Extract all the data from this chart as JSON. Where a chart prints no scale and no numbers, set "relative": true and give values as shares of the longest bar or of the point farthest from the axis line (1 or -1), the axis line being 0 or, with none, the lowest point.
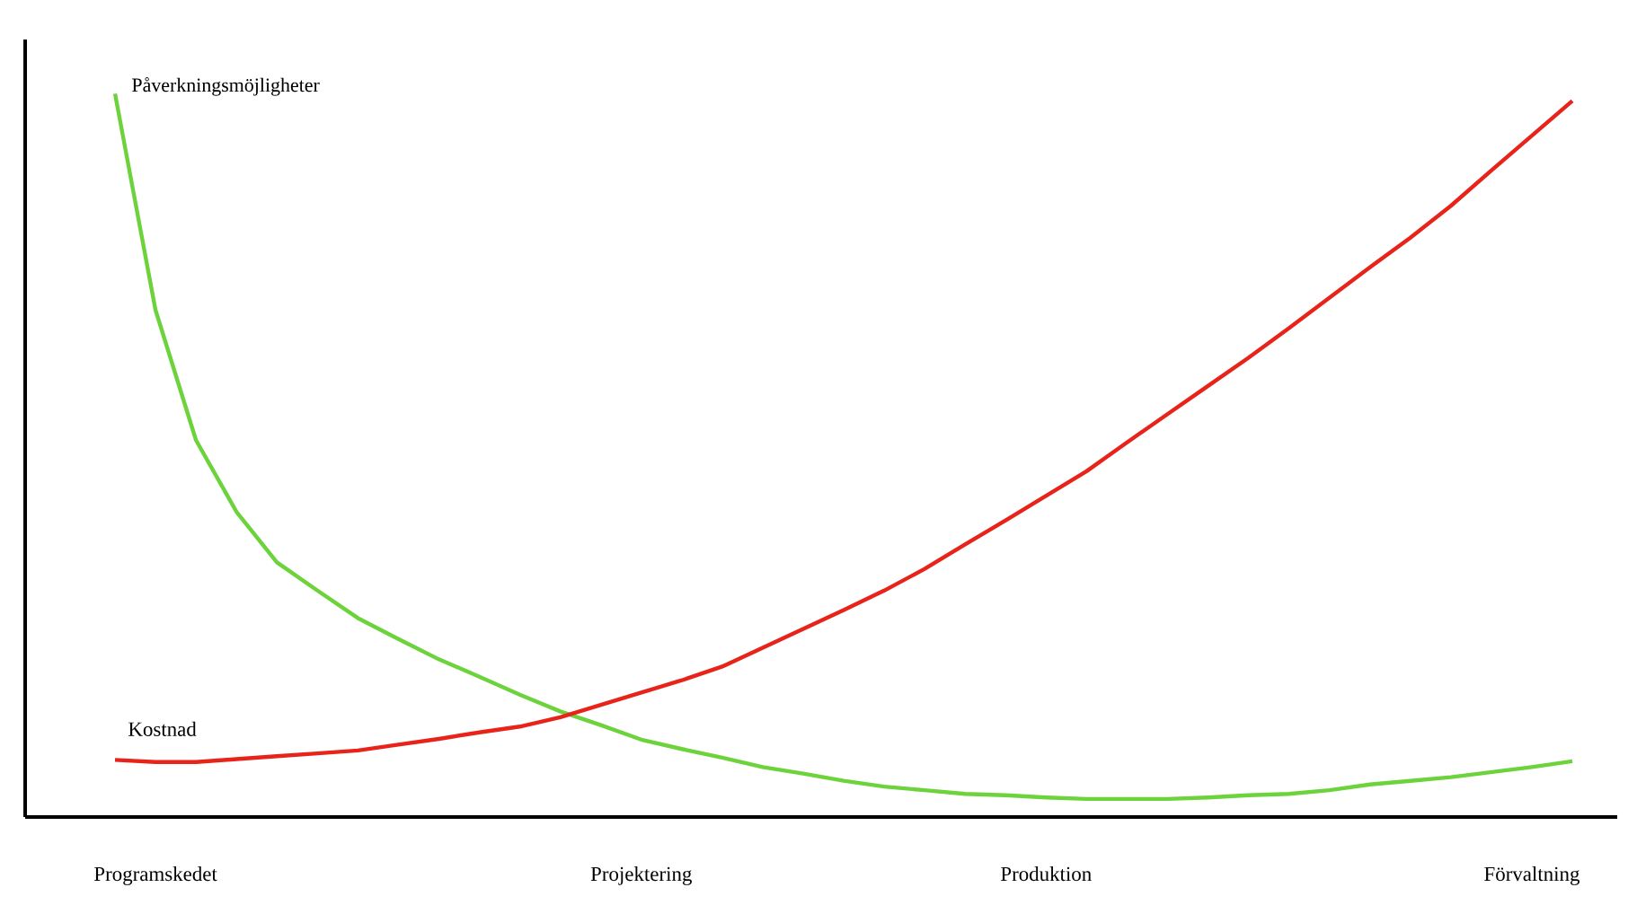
{
  "chart_data": {
    "type": "line",
    "relative": true,
    "legend": false,
    "grid": false,
    "marker": "none",
    "line_style": "solid",
    "categories": [
      null,
      "Programskedet",
      null,
      null,
      null,
      null,
      null,
      null,
      null,
      null,
      null,
      null,
      null,
      "Projektering",
      null,
      null,
      null,
      null,
      null,
      null,
      null,
      null,
      null,
      "Produktion",
      null,
      null,
      null,
      null,
      null,
      null,
      null,
      null,
      null,
      null,
      null,
      "Förvaltning",
      null
    ],
    "series": [
      {
        "name": "Påverkningsmöjligheter",
        "color": "#6dd33c",
        "values": [
          1.0,
          0.701,
          0.521,
          0.422,
          0.352,
          0.313,
          0.275,
          0.246,
          0.218,
          0.194,
          0.169,
          0.146,
          0.127,
          0.107,
          0.094,
          0.082,
          0.069,
          0.06,
          0.05,
          0.042,
          0.037,
          0.032,
          0.03,
          0.027,
          0.025,
          0.025,
          0.025,
          0.027,
          0.03,
          0.032,
          0.037,
          0.045,
          0.05,
          0.055,
          0.062,
          0.069,
          0.077
        ]
      },
      {
        "name": "Kostnad",
        "color": "#e8231a",
        "values": [
          0.079,
          0.076,
          0.076,
          0.08,
          0.084,
          0.088,
          0.092,
          0.1,
          0.108,
          0.117,
          0.125,
          0.138,
          0.155,
          0.172,
          0.189,
          0.208,
          0.234,
          0.26,
          0.286,
          0.313,
          0.343,
          0.377,
          0.41,
          0.444,
          0.478,
          0.518,
          0.557,
          0.596,
          0.635,
          0.676,
          0.718,
          0.76,
          0.801,
          0.845,
          0.894,
          0.942,
          0.99
        ]
      }
    ]
  }
}
